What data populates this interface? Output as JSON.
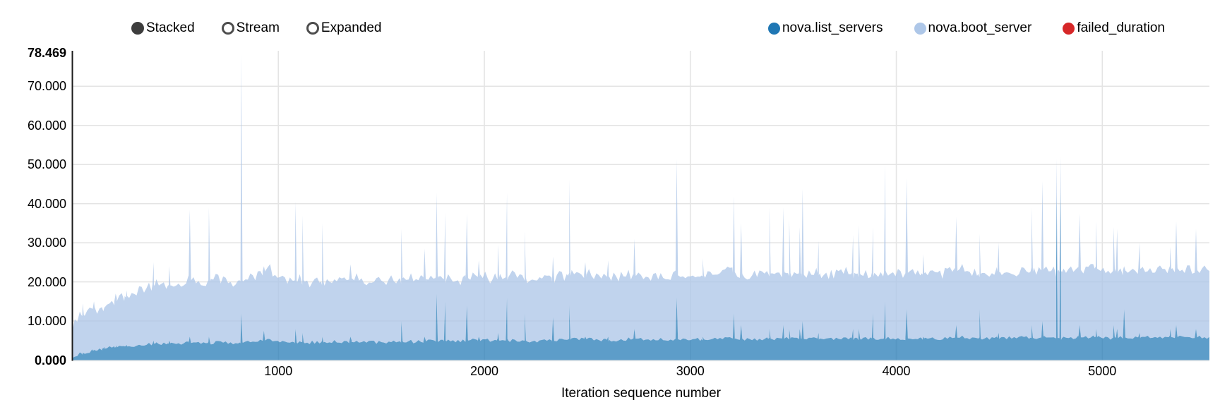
{
  "controls": {
    "modes": [
      {
        "label": "Stacked",
        "selected": true
      },
      {
        "label": "Stream",
        "selected": false
      },
      {
        "label": "Expanded",
        "selected": false
      }
    ]
  },
  "legend": {
    "items": [
      {
        "label": "nova.list_servers",
        "color": "#1f77b4"
      },
      {
        "label": "nova.boot_server",
        "color": "#aec7e8"
      },
      {
        "label": "failed_duration",
        "color": "#d62728"
      }
    ]
  },
  "chart_data": {
    "type": "area",
    "stacked": true,
    "title": "",
    "xlabel": "Iteration sequence number",
    "ylabel": "",
    "xlim": [
      0,
      5520
    ],
    "ylim": [
      0,
      78.469
    ],
    "grid": true,
    "legend_position": "top-right",
    "colors": {
      "grid": "#e4e4e4",
      "axis_domain": "#1c1c1c",
      "list_fill": "#1f77b4",
      "boot_fill": "#aec7e8",
      "list_opacity": 0.72,
      "boot_opacity": 0.78
    },
    "y_ticks": [
      {
        "value": 0,
        "label": "0.000",
        "bold": true
      },
      {
        "value": 10,
        "label": "10.000",
        "bold": false
      },
      {
        "value": 20,
        "label": "20.000",
        "bold": false
      },
      {
        "value": 30,
        "label": "30.000",
        "bold": false
      },
      {
        "value": 40,
        "label": "40.000",
        "bold": false
      },
      {
        "value": 50,
        "label": "50.000",
        "bold": false
      },
      {
        "value": 60,
        "label": "60.000",
        "bold": false
      },
      {
        "value": 70,
        "label": "70.000",
        "bold": false
      },
      {
        "value": 78.469,
        "label": "78.469",
        "bold": true
      }
    ],
    "x_ticks": [
      {
        "value": 1000,
        "label": "1000"
      },
      {
        "value": 2000,
        "label": "2000"
      },
      {
        "value": 3000,
        "label": "3000"
      },
      {
        "value": 4000,
        "label": "4000"
      },
      {
        "value": 5000,
        "label": "5000"
      }
    ],
    "series": [
      {
        "name": "nova.list_servers",
        "color": "#1f77b4"
      },
      {
        "name": "nova.boot_server",
        "color": "#aec7e8"
      },
      {
        "name": "failed_duration",
        "color": "#d62728",
        "values": []
      }
    ],
    "baseline": {
      "x": [
        0,
        80,
        160,
        240,
        320,
        400,
        480,
        560,
        640,
        720,
        800,
        880,
        960,
        1040,
        1120,
        1200,
        1280,
        1360,
        1440,
        1520,
        1600,
        1680,
        1760,
        1840,
        1920,
        2000,
        2080,
        2160,
        2240,
        2320,
        2400,
        2480,
        2560,
        2640,
        2720,
        2800,
        2880,
        2960,
        3040,
        3120,
        3200,
        3280,
        3360,
        3440,
        3520,
        3600,
        3680,
        3760,
        3840,
        3920,
        4000,
        4080,
        4160,
        4240,
        4320,
        4400,
        4480,
        4560,
        4640,
        4720,
        4800,
        4880,
        4960,
        5040,
        5120,
        5200,
        5280,
        5360,
        5440,
        5520
      ],
      "nova_list_servers": [
        1,
        2.2,
        3,
        3.4,
        3.8,
        4.2,
        4.3,
        4.4,
        4.3,
        4.5,
        4.4,
        4.8,
        5.2,
        4.5,
        4.6,
        4.5,
        4.7,
        4.6,
        4.5,
        4.7,
        4.8,
        4.7,
        4.9,
        4.8,
        5,
        5.2,
        5,
        5.1,
        4.9,
        5,
        5.2,
        5.4,
        5.1,
        5.2,
        5.5,
        5.3,
        5.2,
        5.4,
        5.3,
        5.4,
        5.6,
        5.3,
        5.4,
        5.6,
        5.5,
        5.6,
        5.3,
        5.6,
        5.5,
        5.6,
        5.5,
        5.6,
        5.5,
        5.6,
        5.8,
        5.5,
        5.6,
        5.8,
        5.7,
        5.8,
        5.6,
        5.8,
        5.9,
        5.6,
        5.8,
        5.9,
        5.8,
        5.9,
        5.8,
        5.8
      ],
      "nova_boot_server": [
        8,
        10.8,
        10.5,
        12.6,
        13.7,
        15.3,
        14.7,
        16.1,
        15.7,
        16,
        15.6,
        16.7,
        18.3,
        15.5,
        15.9,
        15.5,
        15.8,
        16.4,
        15.5,
        15.8,
        16.2,
        15.8,
        16.1,
        15.7,
        16,
        16.3,
        16,
        16.4,
        15.6,
        16,
        16.3,
        16.6,
        15.9,
        16.3,
        16.5,
        16.2,
        15.8,
        16.6,
        16.2,
        16.6,
        16.9,
        16.2,
        16.6,
        16.9,
        16.5,
        16.9,
        16.2,
        16.9,
        16.5,
        16.9,
        16.5,
        16.9,
        16.5,
        16.9,
        17.2,
        16.5,
        16.9,
        17.2,
        16.8,
        17.2,
        16.9,
        17.2,
        17.6,
        16.9,
        17.2,
        17.6,
        17.2,
        17.6,
        17.2,
        17.2
      ]
    },
    "spikes_format": [
      "iteration",
      "stack_total",
      "nova.list_servers_value"
    ],
    "spikes": [
      [
        50,
        14.5,
        1.8
      ],
      [
        105,
        15,
        2.5
      ],
      [
        150,
        12.5,
        3
      ],
      [
        210,
        17,
        3.3
      ],
      [
        260,
        16,
        3.6
      ],
      [
        395,
        25,
        5
      ],
      [
        470,
        24,
        5
      ],
      [
        570,
        38.5,
        6
      ],
      [
        663,
        39,
        6
      ],
      [
        820,
        78.469,
        12
      ],
      [
        930,
        24,
        7.5
      ],
      [
        1083,
        40.5,
        8
      ],
      [
        1117,
        37,
        7
      ],
      [
        1213,
        35,
        6
      ],
      [
        1350,
        24.5,
        6
      ],
      [
        1597,
        33.5,
        10
      ],
      [
        1710,
        28.5,
        6
      ],
      [
        1768,
        42.8,
        17
      ],
      [
        1810,
        37.6,
        15
      ],
      [
        1915,
        37.4,
        14
      ],
      [
        1973,
        25.5,
        6
      ],
      [
        2066,
        29.5,
        7
      ],
      [
        2110,
        42.8,
        16
      ],
      [
        2196,
        33,
        12
      ],
      [
        2333,
        26.5,
        11
      ],
      [
        2412,
        46.2,
        14
      ],
      [
        2490,
        25,
        6
      ],
      [
        2601,
        25.5,
        6
      ],
      [
        2728,
        31,
        8
      ],
      [
        2934,
        51.3,
        16
      ],
      [
        3060,
        26,
        6
      ],
      [
        3212,
        42,
        12
      ],
      [
        3247,
        35,
        9
      ],
      [
        3384,
        39,
        8
      ],
      [
        3452,
        39,
        9
      ],
      [
        3480,
        36,
        8
      ],
      [
        3531,
        34,
        8
      ],
      [
        3545,
        43.8,
        10
      ],
      [
        3623,
        30.5,
        7
      ],
      [
        3790,
        32,
        8
      ],
      [
        3818,
        34.5,
        8
      ],
      [
        3887,
        34,
        12
      ],
      [
        3946,
        49.8,
        15
      ],
      [
        4050,
        46.5,
        13
      ],
      [
        4130,
        27,
        6
      ],
      [
        4291,
        36.6,
        9
      ],
      [
        4404,
        32.3,
        13
      ],
      [
        4497,
        30,
        7
      ],
      [
        4657,
        39,
        9
      ],
      [
        4709,
        45.8,
        10
      ],
      [
        4777,
        51.5,
        42
      ],
      [
        4798,
        52,
        44
      ],
      [
        4890,
        37.5,
        9
      ],
      [
        4969,
        35.5,
        8
      ],
      [
        5055,
        34,
        9
      ],
      [
        5072,
        33.5,
        8
      ],
      [
        5106,
        24,
        13
      ],
      [
        5181,
        30,
        7
      ],
      [
        5329,
        29,
        8
      ],
      [
        5359,
        35.5,
        9
      ],
      [
        5455,
        33.5,
        8
      ]
    ],
    "noise_jitter_boot": 2.6,
    "noise_jitter_list": 0.9
  }
}
